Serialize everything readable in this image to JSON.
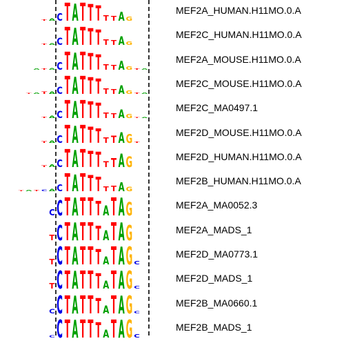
{
  "colors": {
    "A": "#00a000",
    "C": "#0000e6",
    "G": "#ffb300",
    "T": "#ff0000"
  },
  "core_columns": [
    "C",
    "T",
    "A",
    "T",
    "T",
    "T",
    "T",
    "A",
    "A",
    "G"
  ],
  "motifs": [
    {
      "name": "MEF2A_HUMAN.H11MO.0.A",
      "logo": [
        [],
        [],
        [],
        [
          "T",
          0.08
        ],
        [
          "A",
          0.12
        ],
        [
          "C",
          0.42
        ],
        [
          "T",
          1.0
        ],
        [
          "A",
          0.95
        ],
        [
          "T",
          1.0
        ],
        [
          "T",
          0.92
        ],
        [
          "T",
          0.85
        ],
        [
          "T",
          0.3
        ],
        [
          "T",
          0.28
        ],
        [
          "A",
          0.5
        ],
        [
          "G",
          0.22
        ],
        [],
        [],
        [],
        []
      ]
    },
    {
      "name": "MEF2C_HUMAN.H11MO.0.A",
      "logo": [
        [],
        [],
        [],
        [
          "T",
          0.08
        ],
        [
          "A",
          0.1
        ],
        [
          "C",
          0.4
        ],
        [
          "T",
          1.0
        ],
        [
          "A",
          0.95
        ],
        [
          "T",
          1.0
        ],
        [
          "T",
          0.92
        ],
        [
          "T",
          0.85
        ],
        [
          "T",
          0.3
        ],
        [
          "T",
          0.28
        ],
        [
          "A",
          0.48
        ],
        [
          "G",
          0.2
        ],
        [],
        [],
        [],
        []
      ]
    },
    {
      "name": "MEF2A_MOUSE.H11MO.0.A",
      "logo": [
        [],
        [],
        [
          "A",
          0.08
        ],
        [
          "T",
          0.08
        ],
        [
          "A",
          0.1
        ],
        [
          "C",
          0.42
        ],
        [
          "T",
          1.0
        ],
        [
          "A",
          0.95
        ],
        [
          "T",
          1.0
        ],
        [
          "T",
          0.92
        ],
        [
          "T",
          0.85
        ],
        [
          "T",
          0.3
        ],
        [
          "T",
          0.28
        ],
        [
          "A",
          0.5
        ],
        [
          "G",
          0.2
        ],
        [
          "T",
          0.06
        ],
        [
          "A",
          0.06
        ],
        [],
        []
      ]
    },
    {
      "name": "MEF2C_MOUSE.H11MO.0.A",
      "logo": [
        [],
        [
          "T",
          0.05
        ],
        [
          "A",
          0.08
        ],
        [
          "T",
          0.12
        ],
        [
          "A",
          0.12
        ],
        [
          "C",
          0.4
        ],
        [
          "T",
          1.0
        ],
        [
          "A",
          0.95
        ],
        [
          "T",
          1.0
        ],
        [
          "T",
          0.92
        ],
        [
          "T",
          0.85
        ],
        [
          "T",
          0.3
        ],
        [
          "T",
          0.28
        ],
        [
          "A",
          0.48
        ],
        [
          "G",
          0.2
        ],
        [
          "T",
          0.08
        ],
        [
          "A",
          0.08
        ],
        [],
        []
      ]
    },
    {
      "name": "MEF2C_MA0497.1",
      "logo": [
        [],
        [],
        [],
        [
          "T",
          0.08
        ],
        [
          "A",
          0.12
        ],
        [
          "C",
          0.4
        ],
        [
          "T",
          1.0
        ],
        [
          "A",
          0.95
        ],
        [
          "T",
          1.0
        ],
        [
          "T",
          0.92
        ],
        [
          "T",
          0.85
        ],
        [
          "T",
          0.3
        ],
        [
          "T",
          0.28
        ],
        [
          "A",
          0.48
        ],
        [
          "G",
          0.22
        ],
        [
          "T",
          0.05
        ],
        [
          "A",
          0.05
        ],
        [],
        []
      ]
    },
    {
      "name": "MEF2D_MOUSE.H11MO.0.A",
      "logo": [
        [],
        [],
        [],
        [
          "T",
          0.1
        ],
        [
          "A",
          0.12
        ],
        [
          "C",
          0.42
        ],
        [
          "T",
          1.0
        ],
        [
          "A",
          0.95
        ],
        [
          "T",
          1.0
        ],
        [
          "T",
          0.9
        ],
        [
          "T",
          0.8
        ],
        [
          "T",
          0.3
        ],
        [
          "T",
          0.4
        ],
        [
          "A",
          0.6
        ],
        [
          "G",
          0.5
        ],
        [
          "T",
          0.06
        ],
        [],
        [],
        []
      ]
    },
    {
      "name": "MEF2D_HUMAN.H11MO.0.A",
      "logo": [
        [],
        [],
        [],
        [
          "T",
          0.1
        ],
        [
          "A",
          0.14
        ],
        [
          "C",
          0.42
        ],
        [
          "T",
          1.0
        ],
        [
          "A",
          0.95
        ],
        [
          "T",
          1.0
        ],
        [
          "T",
          0.9
        ],
        [
          "T",
          0.85
        ],
        [
          "T",
          0.32
        ],
        [
          "T",
          0.5
        ],
        [
          "A",
          0.75
        ],
        [
          "G",
          0.6
        ],
        [],
        [],
        [],
        []
      ]
    },
    {
      "name": "MEF2B_HUMAN.H11MO.0.A",
      "logo": [
        [
          "T",
          0.04
        ],
        [
          "A",
          0.06
        ],
        [
          "T",
          0.08
        ],
        [
          "C",
          0.1
        ],
        [
          "A",
          0.12
        ],
        [
          "C",
          0.38
        ],
        [
          "T",
          1.0
        ],
        [
          "A",
          0.92
        ],
        [
          "T",
          1.0
        ],
        [
          "T",
          0.9
        ],
        [
          "T",
          0.8
        ],
        [
          "T",
          0.28
        ],
        [
          "T",
          0.3
        ],
        [
          "A",
          0.5
        ],
        [
          "G",
          0.25
        ],
        [],
        [],
        [],
        []
      ]
    },
    {
      "name": "MEF2A_MA0052.3",
      "logo": [
        [],
        [],
        [],
        [],
        [
          "C",
          0.35
        ],
        [
          "C",
          0.85
        ],
        [
          "T",
          1.0
        ],
        [
          "A",
          1.0
        ],
        [
          "T",
          1.0
        ],
        [
          "T",
          1.0
        ],
        [
          "T",
          0.8
        ],
        [
          "A",
          0.55
        ],
        [
          "T",
          1.0
        ],
        [
          "A",
          1.0
        ],
        [
          "G",
          0.75
        ],
        [],
        [],
        [],
        []
      ]
    },
    {
      "name": "MEF2A_MADS_1",
      "logo": [
        [],
        [],
        [],
        [],
        [
          "T",
          0.3
        ],
        [
          "C",
          0.85
        ],
        [
          "T",
          1.0
        ],
        [
          "A",
          1.0
        ],
        [
          "T",
          1.0
        ],
        [
          "T",
          1.0
        ],
        [
          "T",
          0.8
        ],
        [
          "A",
          0.55
        ],
        [
          "T",
          1.0
        ],
        [
          "A",
          1.0
        ],
        [
          "G",
          0.85
        ],
        [],
        [],
        [],
        []
      ]
    },
    {
      "name": "MEF2D_MA0773.1",
      "logo": [
        [],
        [],
        [],
        [],
        [
          "T",
          0.3
        ],
        [
          "C",
          1.0
        ],
        [
          "T",
          1.0
        ],
        [
          "A",
          1.0
        ],
        [
          "T",
          1.0
        ],
        [
          "T",
          1.0
        ],
        [
          "T",
          0.85
        ],
        [
          "A",
          0.45
        ],
        [
          "T",
          1.0
        ],
        [
          "A",
          1.0
        ],
        [
          "G",
          1.0
        ],
        [
          "C",
          0.2
        ],
        [],
        [],
        []
      ]
    },
    {
      "name": "MEF2D_MADS_1",
      "logo": [
        [],
        [],
        [],
        [],
        [
          "T",
          0.3
        ],
        [
          "C",
          1.0
        ],
        [
          "T",
          1.0
        ],
        [
          "A",
          1.0
        ],
        [
          "T",
          1.0
        ],
        [
          "T",
          1.0
        ],
        [
          "T",
          0.85
        ],
        [
          "A",
          0.45
        ],
        [
          "T",
          1.0
        ],
        [
          "A",
          1.0
        ],
        [
          "G",
          1.0
        ],
        [
          "C",
          0.15
        ],
        [],
        [],
        []
      ]
    },
    {
      "name": "MEF2B_MA0660.1",
      "logo": [
        [],
        [],
        [],
        [],
        [
          "C",
          0.25
        ],
        [
          "C",
          1.0
        ],
        [
          "T",
          1.0
        ],
        [
          "A",
          1.0
        ],
        [
          "T",
          1.0
        ],
        [
          "T",
          1.0
        ],
        [
          "T",
          0.85
        ],
        [
          "A",
          0.45
        ],
        [
          "T",
          1.0
        ],
        [
          "A",
          1.0
        ],
        [
          "G",
          1.0
        ],
        [
          "C",
          0.12
        ],
        [],
        [],
        []
      ]
    },
    {
      "name": "MEF2B_MADS_1",
      "logo": [
        [],
        [],
        [],
        [],
        [
          "C",
          0.12
        ],
        [
          "C",
          1.0
        ],
        [
          "T",
          1.0
        ],
        [
          "A",
          1.0
        ],
        [
          "T",
          1.0
        ],
        [
          "T",
          1.0
        ],
        [
          "T",
          0.85
        ],
        [
          "A",
          0.45
        ],
        [
          "T",
          1.0
        ],
        [
          "A",
          1.0
        ],
        [
          "G",
          1.0
        ],
        [
          "C",
          0.2
        ],
        [],
        [],
        []
      ]
    }
  ]
}
